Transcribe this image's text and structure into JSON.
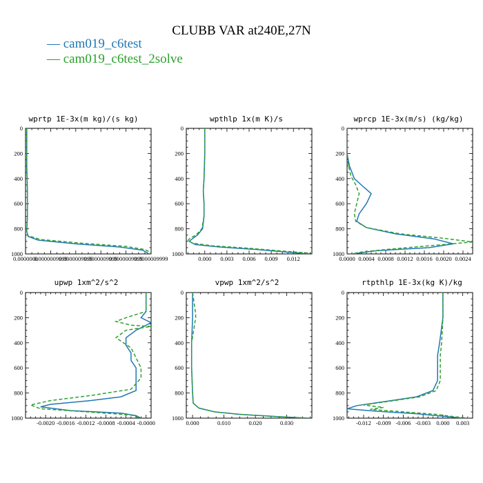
{
  "title": "CLUBB VAR at240E,27N",
  "colors": {
    "series1": "#1f77b4",
    "series2": "#2ca02c"
  },
  "legend": [
    {
      "marker": "—",
      "name": "cam019_c6test",
      "color": "#1f77b4",
      "dash": ""
    },
    {
      "marker": "—",
      "name": "cam019_c6test_2solve",
      "color": "#2ca02c",
      "dash": "5,3"
    }
  ],
  "chart_data": [
    {
      "type": "line",
      "title": "wprtp  1E-3x(m kg)/(s kg)",
      "xlim": [
        0.0,
        1.0
      ],
      "ylim": [
        1000,
        0
      ],
      "y_reversed": true,
      "xticks": [
        0.0,
        0.2,
        0.4,
        0.6,
        0.8,
        1.0
      ],
      "xticklabels": [
        "0.0000000",
        "0.0000009999",
        "0.0000009999",
        "0.0000009999",
        "0.0000009999",
        "0.0000009999"
      ],
      "yticks": [
        0,
        200,
        400,
        600,
        800,
        1000
      ],
      "series": [
        {
          "name": "cam019_c6test",
          "points": [
            [
              0.01,
              0
            ],
            [
              0.01,
              300
            ],
            [
              0.015,
              500
            ],
            [
              0.015,
              700
            ],
            [
              0.01,
              820
            ],
            [
              0.02,
              860
            ],
            [
              0.1,
              890
            ],
            [
              0.4,
              920
            ],
            [
              0.75,
              945
            ],
            [
              0.93,
              970
            ],
            [
              0.97,
              990
            ],
            [
              0.98,
              1000
            ]
          ]
        },
        {
          "name": "cam019_c6test_2solve",
          "points": [
            [
              0.01,
              0
            ],
            [
              0.01,
              300
            ],
            [
              0.015,
              500
            ],
            [
              0.015,
              700
            ],
            [
              0.01,
              820
            ],
            [
              0.02,
              855
            ],
            [
              0.12,
              885
            ],
            [
              0.45,
              915
            ],
            [
              0.8,
              940
            ],
            [
              0.95,
              965
            ],
            [
              0.99,
              985
            ],
            [
              1.0,
              1000
            ]
          ]
        }
      ]
    },
    {
      "type": "line",
      "title": "wpthlp  1x(m K)/s",
      "xlim": [
        -0.0025,
        0.0145
      ],
      "ylim": [
        1000,
        0
      ],
      "y_reversed": true,
      "xticks": [
        0.0,
        0.003,
        0.006,
        0.009,
        0.012
      ],
      "xticklabels": [
        "0.000",
        "0.003",
        "0.006",
        "0.009",
        "0.012"
      ],
      "yticks": [
        0,
        200,
        400,
        600,
        800,
        1000
      ],
      "series": [
        {
          "name": "cam019_c6test",
          "points": [
            [
              0.0,
              0
            ],
            [
              0.0,
              200
            ],
            [
              -0.0001,
              400
            ],
            [
              -0.0002,
              500
            ],
            [
              -0.0001,
              600
            ],
            [
              -0.0001,
              700
            ],
            [
              -0.0003,
              800
            ],
            [
              -0.001,
              850
            ],
            [
              -0.0017,
              880
            ],
            [
              -0.0021,
              900
            ],
            [
              -0.0013,
              925
            ],
            [
              0.002,
              945
            ],
            [
              0.007,
              965
            ],
            [
              0.011,
              985
            ],
            [
              0.014,
              1000
            ]
          ]
        },
        {
          "name": "cam019_c6test_2solve",
          "points": [
            [
              0.0,
              0
            ],
            [
              0.0,
              200
            ],
            [
              -0.0001,
              400
            ],
            [
              -0.0002,
              500
            ],
            [
              -0.0001,
              600
            ],
            [
              -0.0001,
              700
            ],
            [
              -0.0004,
              800
            ],
            [
              -0.0012,
              850
            ],
            [
              -0.002,
              875
            ],
            [
              -0.0023,
              895
            ],
            [
              -0.0016,
              915
            ],
            [
              0.001,
              935
            ],
            [
              0.006,
              955
            ],
            [
              0.01,
              975
            ],
            [
              0.0145,
              995
            ]
          ]
        }
      ]
    },
    {
      "type": "line",
      "title": "wprcp  1E-3x(m/s) (kg/kg)",
      "xlim": [
        0.0,
        0.0026
      ],
      "ylim": [
        1000,
        0
      ],
      "y_reversed": true,
      "xticks": [
        0.0,
        0.0004,
        0.0008,
        0.0012,
        0.0016,
        0.002,
        0.0024
      ],
      "xticklabels": [
        "0.0000",
        "0.0004",
        "0.0008",
        "0.0012",
        "0.0016",
        "0.0020",
        "0.0024"
      ],
      "yticks": [
        0,
        200,
        400,
        600,
        800,
        1000
      ],
      "series": [
        {
          "name": "cam019_c6test",
          "points": [
            [
              0.0,
              0
            ],
            [
              0.0,
              200
            ],
            [
              5e-05,
              300
            ],
            [
              0.00015,
              400
            ],
            [
              0.00035,
              470
            ],
            [
              0.0005,
              520
            ],
            [
              0.0004,
              600
            ],
            [
              0.00025,
              680
            ],
            [
              0.0002,
              740
            ],
            [
              0.0004,
              790
            ],
            [
              0.001,
              840
            ],
            [
              0.0018,
              880
            ],
            [
              0.0022,
              920
            ],
            [
              0.0017,
              950
            ],
            [
              0.0006,
              975
            ],
            [
              0.0001,
              1000
            ]
          ]
        },
        {
          "name": "cam019_c6test_2solve",
          "points": [
            [
              0.0,
              0
            ],
            [
              0.0,
              200
            ],
            [
              3e-05,
              300
            ],
            [
              8e-05,
              380
            ],
            [
              0.00018,
              450
            ],
            [
              0.00025,
              520
            ],
            [
              0.0002,
              600
            ],
            [
              0.00015,
              680
            ],
            [
              0.00018,
              740
            ],
            [
              0.0004,
              790
            ],
            [
              0.0011,
              840
            ],
            [
              0.002,
              875
            ],
            [
              0.0026,
              905
            ],
            [
              0.002,
              925
            ],
            [
              0.0014,
              945
            ],
            [
              0.0008,
              965
            ],
            [
              0.0003,
              985
            ],
            [
              0.0001,
              1000
            ]
          ]
        }
      ]
    },
    {
      "type": "line",
      "title": "upwp  1xm^2/s^2",
      "xlim": [
        -0.0024,
        0.0001
      ],
      "ylim": [
        1000,
        0
      ],
      "y_reversed": true,
      "xticks": [
        -0.002,
        -0.0016,
        -0.0012,
        -0.0008,
        -0.0004,
        0.0
      ],
      "xticklabels": [
        "-0.0020",
        "-0.0016",
        "-0.0012",
        "-0.0008",
        "-0.0004",
        "-0.0000"
      ],
      "yticks": [
        0,
        200,
        400,
        600,
        800,
        1000
      ],
      "series": [
        {
          "name": "cam019_c6test",
          "points": [
            [
              0.0,
              0
            ],
            [
              0.0,
              150
            ],
            [
              -0.0001,
              200
            ],
            [
              0.0001,
              240
            ],
            [
              -0.0002,
              300
            ],
            [
              -0.0004,
              360
            ],
            [
              -0.0004,
              420
            ],
            [
              -0.0003,
              480
            ],
            [
              -0.0003,
              540
            ],
            [
              -0.0002,
              600
            ],
            [
              -0.0002,
              700
            ],
            [
              -0.0002,
              780
            ],
            [
              -0.0005,
              830
            ],
            [
              -0.0011,
              860
            ],
            [
              -0.0019,
              890
            ],
            [
              -0.0021,
              910
            ],
            [
              -0.0015,
              940
            ],
            [
              -0.0005,
              960
            ],
            [
              -0.0002,
              980
            ],
            [
              -0.0001,
              1000
            ]
          ]
        },
        {
          "name": "cam019_c6test_2solve",
          "points": [
            [
              0.0,
              0
            ],
            [
              0.0,
              150
            ],
            [
              -0.0004,
              200
            ],
            [
              -0.0006,
              230
            ],
            [
              -0.0003,
              260
            ],
            [
              0.0001,
              270
            ],
            [
              -0.0004,
              300
            ],
            [
              -0.0006,
              360
            ],
            [
              -0.0003,
              440
            ],
            [
              -0.0002,
              520
            ],
            [
              -0.0001,
              600
            ],
            [
              -0.0001,
              680
            ],
            [
              -0.0003,
              770
            ],
            [
              -0.0011,
              820
            ],
            [
              -0.0019,
              860
            ],
            [
              -0.0023,
              895
            ],
            [
              -0.0021,
              925
            ],
            [
              -0.001,
              955
            ],
            [
              -0.0003,
              975
            ],
            [
              -0.0001,
              1000
            ]
          ]
        }
      ]
    },
    {
      "type": "line",
      "title": "vpwp  1xm^2/s^2",
      "xlim": [
        -0.002,
        0.038
      ],
      "ylim": [
        1000,
        0
      ],
      "y_reversed": true,
      "xticks": [
        0.0,
        0.01,
        0.02,
        0.03
      ],
      "xticklabels": [
        "0.000",
        "0.010",
        "0.020",
        "0.030"
      ],
      "yticks": [
        0,
        200,
        400,
        600,
        800,
        1000
      ],
      "series": [
        {
          "name": "cam019_c6test",
          "points": [
            [
              0.0,
              0
            ],
            [
              0.0,
              150
            ],
            [
              0.0,
              200
            ],
            [
              -0.0003,
              400
            ],
            [
              -0.0003,
              600
            ],
            [
              0.0,
              800
            ],
            [
              0.0002,
              880
            ],
            [
              0.002,
              920
            ],
            [
              0.007,
              950
            ],
            [
              0.015,
              970
            ],
            [
              0.027,
              988
            ],
            [
              0.037,
              1000
            ]
          ]
        },
        {
          "name": "cam019_c6test_2solve",
          "points": [
            [
              0.0,
              0
            ],
            [
              0.001,
              170
            ],
            [
              0.001,
              200
            ],
            [
              -0.0003,
              400
            ],
            [
              -0.0003,
              600
            ],
            [
              0.0,
              800
            ],
            [
              0.0002,
              880
            ],
            [
              0.002,
              920
            ],
            [
              0.007,
              950
            ],
            [
              0.015,
              970
            ],
            [
              0.027,
              988
            ],
            [
              0.037,
              1000
            ]
          ]
        }
      ]
    },
    {
      "type": "line",
      "title": "rtpthlp  1E-3x(kg K)/kg",
      "xlim": [
        -0.0145,
        0.0045
      ],
      "ylim": [
        1000,
        0
      ],
      "y_reversed": true,
      "xticks": [
        -0.012,
        -0.009,
        -0.006,
        -0.003,
        0.0,
        0.003
      ],
      "xticklabels": [
        "-0.012",
        "-0.009",
        "-0.006",
        "-0.003",
        "0.000",
        "0.003"
      ],
      "yticks": [
        0,
        200,
        400,
        600,
        800,
        1000
      ],
      "series": [
        {
          "name": "cam019_c6test",
          "points": [
            [
              0.0,
              0
            ],
            [
              0.0,
              200
            ],
            [
              -0.0005,
              400
            ],
            [
              -0.0008,
              500
            ],
            [
              -0.0008,
              600
            ],
            [
              -0.0008,
              700
            ],
            [
              -0.0015,
              780
            ],
            [
              -0.004,
              830
            ],
            [
              -0.009,
              870
            ],
            [
              -0.013,
              900
            ],
            [
              -0.0145,
              925
            ],
            [
              -0.01,
              945
            ],
            [
              -0.004,
              965
            ],
            [
              0.0,
              985
            ],
            [
              0.003,
              1000
            ]
          ]
        },
        {
          "name": "cam019_c6test_2solve",
          "points": [
            [
              0.0,
              0
            ],
            [
              0.0,
              200
            ],
            [
              -0.0002,
              400
            ],
            [
              -0.0004,
              500
            ],
            [
              -0.0004,
              600
            ],
            [
              -0.0004,
              700
            ],
            [
              -0.001,
              780
            ],
            [
              -0.0035,
              830
            ],
            [
              -0.008,
              865
            ],
            [
              -0.012,
              895
            ],
            [
              -0.009,
              915
            ],
            [
              -0.011,
              930
            ],
            [
              -0.006,
              950
            ],
            [
              -0.001,
              970
            ],
            [
              0.002,
              990
            ],
            [
              0.004,
              1000
            ]
          ]
        }
      ]
    }
  ]
}
